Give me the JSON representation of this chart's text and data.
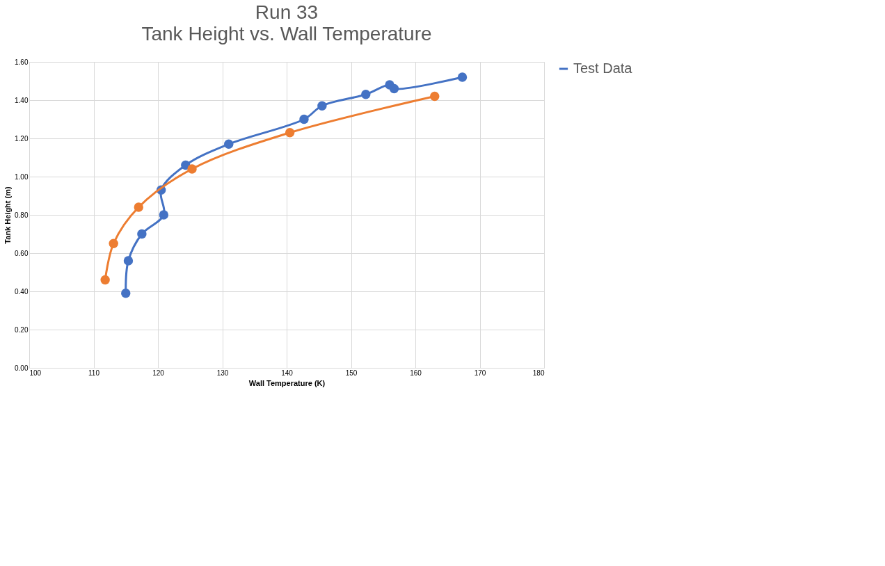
{
  "chart_data": {
    "type": "line",
    "title": "Run 33",
    "subtitle": "Tank Height vs. Wall Temperature",
    "xlabel": "Wall Temperature (K)",
    "ylabel": "Tank Height (m)",
    "xlim": [
      100,
      180
    ],
    "xticks": [
      100,
      110,
      120,
      130,
      140,
      150,
      160,
      170,
      180
    ],
    "ylim": [
      0,
      1.6
    ],
    "yticks": [
      {
        "value": 0,
        "label": "0.00"
      },
      {
        "value": 0.2,
        "label": "0.20"
      },
      {
        "value": 0.4,
        "label": "0.40"
      },
      {
        "value": 0.6,
        "label": "0.60"
      },
      {
        "value": 0.8,
        "label": "0.80"
      },
      {
        "value": 1.0,
        "label": "1.00"
      },
      {
        "value": 1.2,
        "label": "1.20"
      },
      {
        "value": 1.4,
        "label": "1.40"
      },
      {
        "value": 1.6,
        "label": "1.60"
      }
    ],
    "grid": true,
    "legend": "right",
    "marker": "circle",
    "line_style": "solid",
    "series": [
      {
        "name": "Test Data",
        "color": "#4472c4",
        "x": [
          115.0,
          115.4,
          117.5,
          120.9,
          120.5,
          124.3,
          131.0,
          142.7,
          145.5,
          152.3,
          156.0,
          156.7,
          167.3
        ],
        "values": [
          0.39,
          0.56,
          0.7,
          0.8,
          0.93,
          1.06,
          1.17,
          1.3,
          1.37,
          1.43,
          1.48,
          1.46,
          1.52
        ]
      },
      {
        "color": "#ed7d31",
        "x": [
          111.8,
          113.1,
          117.0,
          125.3,
          140.5,
          163.0
        ],
        "values": [
          0.46,
          0.65,
          0.84,
          1.04,
          1.23,
          1.42
        ]
      }
    ]
  }
}
